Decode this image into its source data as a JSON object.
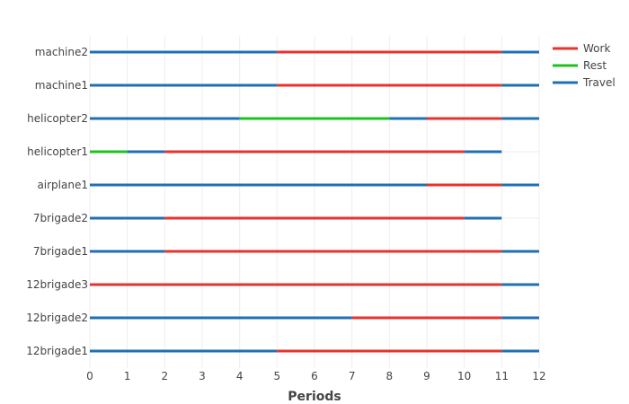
{
  "chart_data": {
    "type": "gantt",
    "xlabel": "Periods",
    "xlim": [
      0,
      12
    ],
    "x_ticks": [
      "0",
      "1",
      "2",
      "3",
      "4",
      "5",
      "6",
      "7",
      "8",
      "9",
      "10",
      "11",
      "12"
    ],
    "grid": true,
    "legend_position": "top-right",
    "legend": [
      {
        "name": "Work",
        "color": "#e8322d"
      },
      {
        "name": "Rest",
        "color": "#1ec21e"
      },
      {
        "name": "Travel",
        "color": "#1f6fb4"
      }
    ],
    "resources": [
      {
        "name": "machine2",
        "segments": [
          {
            "start": 0,
            "end": 5,
            "state": "Travel"
          },
          {
            "start": 5,
            "end": 11,
            "state": "Work"
          },
          {
            "start": 11,
            "end": 12,
            "state": "Travel"
          }
        ]
      },
      {
        "name": "machine1",
        "segments": [
          {
            "start": 0,
            "end": 5,
            "state": "Travel"
          },
          {
            "start": 5,
            "end": 11,
            "state": "Work"
          },
          {
            "start": 11,
            "end": 12,
            "state": "Travel"
          }
        ]
      },
      {
        "name": "helicopter2",
        "segments": [
          {
            "start": 0,
            "end": 4,
            "state": "Travel"
          },
          {
            "start": 4,
            "end": 8,
            "state": "Rest"
          },
          {
            "start": 8,
            "end": 9,
            "state": "Travel"
          },
          {
            "start": 9,
            "end": 11,
            "state": "Work"
          },
          {
            "start": 11,
            "end": 12,
            "state": "Travel"
          }
        ]
      },
      {
        "name": "helicopter1",
        "segments": [
          {
            "start": 0,
            "end": 1,
            "state": "Rest"
          },
          {
            "start": 1,
            "end": 2,
            "state": "Travel"
          },
          {
            "start": 2,
            "end": 10,
            "state": "Work"
          },
          {
            "start": 10,
            "end": 11,
            "state": "Travel"
          }
        ]
      },
      {
        "name": "airplane1",
        "segments": [
          {
            "start": 0,
            "end": 9,
            "state": "Travel"
          },
          {
            "start": 9,
            "end": 11,
            "state": "Work"
          },
          {
            "start": 11,
            "end": 12,
            "state": "Travel"
          }
        ]
      },
      {
        "name": "7brigade2",
        "segments": [
          {
            "start": 0,
            "end": 2,
            "state": "Travel"
          },
          {
            "start": 2,
            "end": 10,
            "state": "Work"
          },
          {
            "start": 10,
            "end": 11,
            "state": "Travel"
          }
        ]
      },
      {
        "name": "7brigade1",
        "segments": [
          {
            "start": 0,
            "end": 2,
            "state": "Travel"
          },
          {
            "start": 2,
            "end": 11,
            "state": "Work"
          },
          {
            "start": 11,
            "end": 12,
            "state": "Travel"
          }
        ]
      },
      {
        "name": "12brigade3",
        "segments": [
          {
            "start": 0,
            "end": 11,
            "state": "Work"
          },
          {
            "start": 11,
            "end": 12,
            "state": "Travel"
          }
        ]
      },
      {
        "name": "12brigade2",
        "segments": [
          {
            "start": 0,
            "end": 7,
            "state": "Travel"
          },
          {
            "start": 7,
            "end": 11,
            "state": "Work"
          },
          {
            "start": 11,
            "end": 12,
            "state": "Travel"
          }
        ]
      },
      {
        "name": "12brigade1",
        "segments": [
          {
            "start": 0,
            "end": 5,
            "state": "Travel"
          },
          {
            "start": 5,
            "end": 11,
            "state": "Work"
          },
          {
            "start": 11,
            "end": 12,
            "state": "Travel"
          }
        ]
      }
    ]
  }
}
